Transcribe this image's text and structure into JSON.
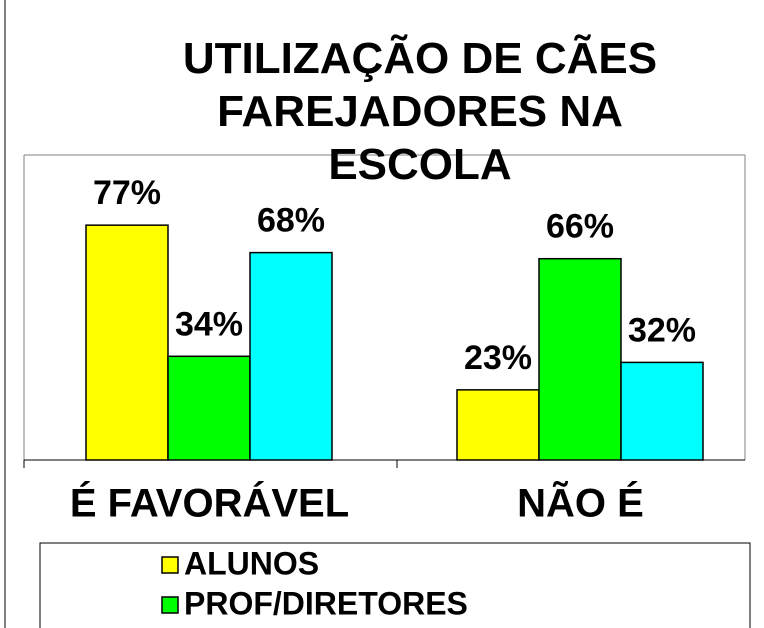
{
  "chart_data": {
    "type": "bar",
    "title": "UTILIZAÇÃO DE CÃES FAREJADORES NA ESCOLA",
    "categories": [
      "É FAVORÁVEL",
      "NÃO É"
    ],
    "ylim": [
      0,
      100
    ],
    "series": [
      {
        "name": "ALUNOS",
        "color": "#ffff00",
        "values": [
          77,
          23
        ],
        "value_labels": [
          "77%",
          "23%"
        ]
      },
      {
        "name": "PROF/DIRETORES",
        "color": "#00ff00",
        "values": [
          34,
          66
        ],
        "value_labels": [
          "34%",
          "66%"
        ]
      },
      {
        "color": "#00ffff",
        "values": [
          68,
          32
        ],
        "value_labels": [
          "68%",
          "32%"
        ]
      }
    ]
  }
}
